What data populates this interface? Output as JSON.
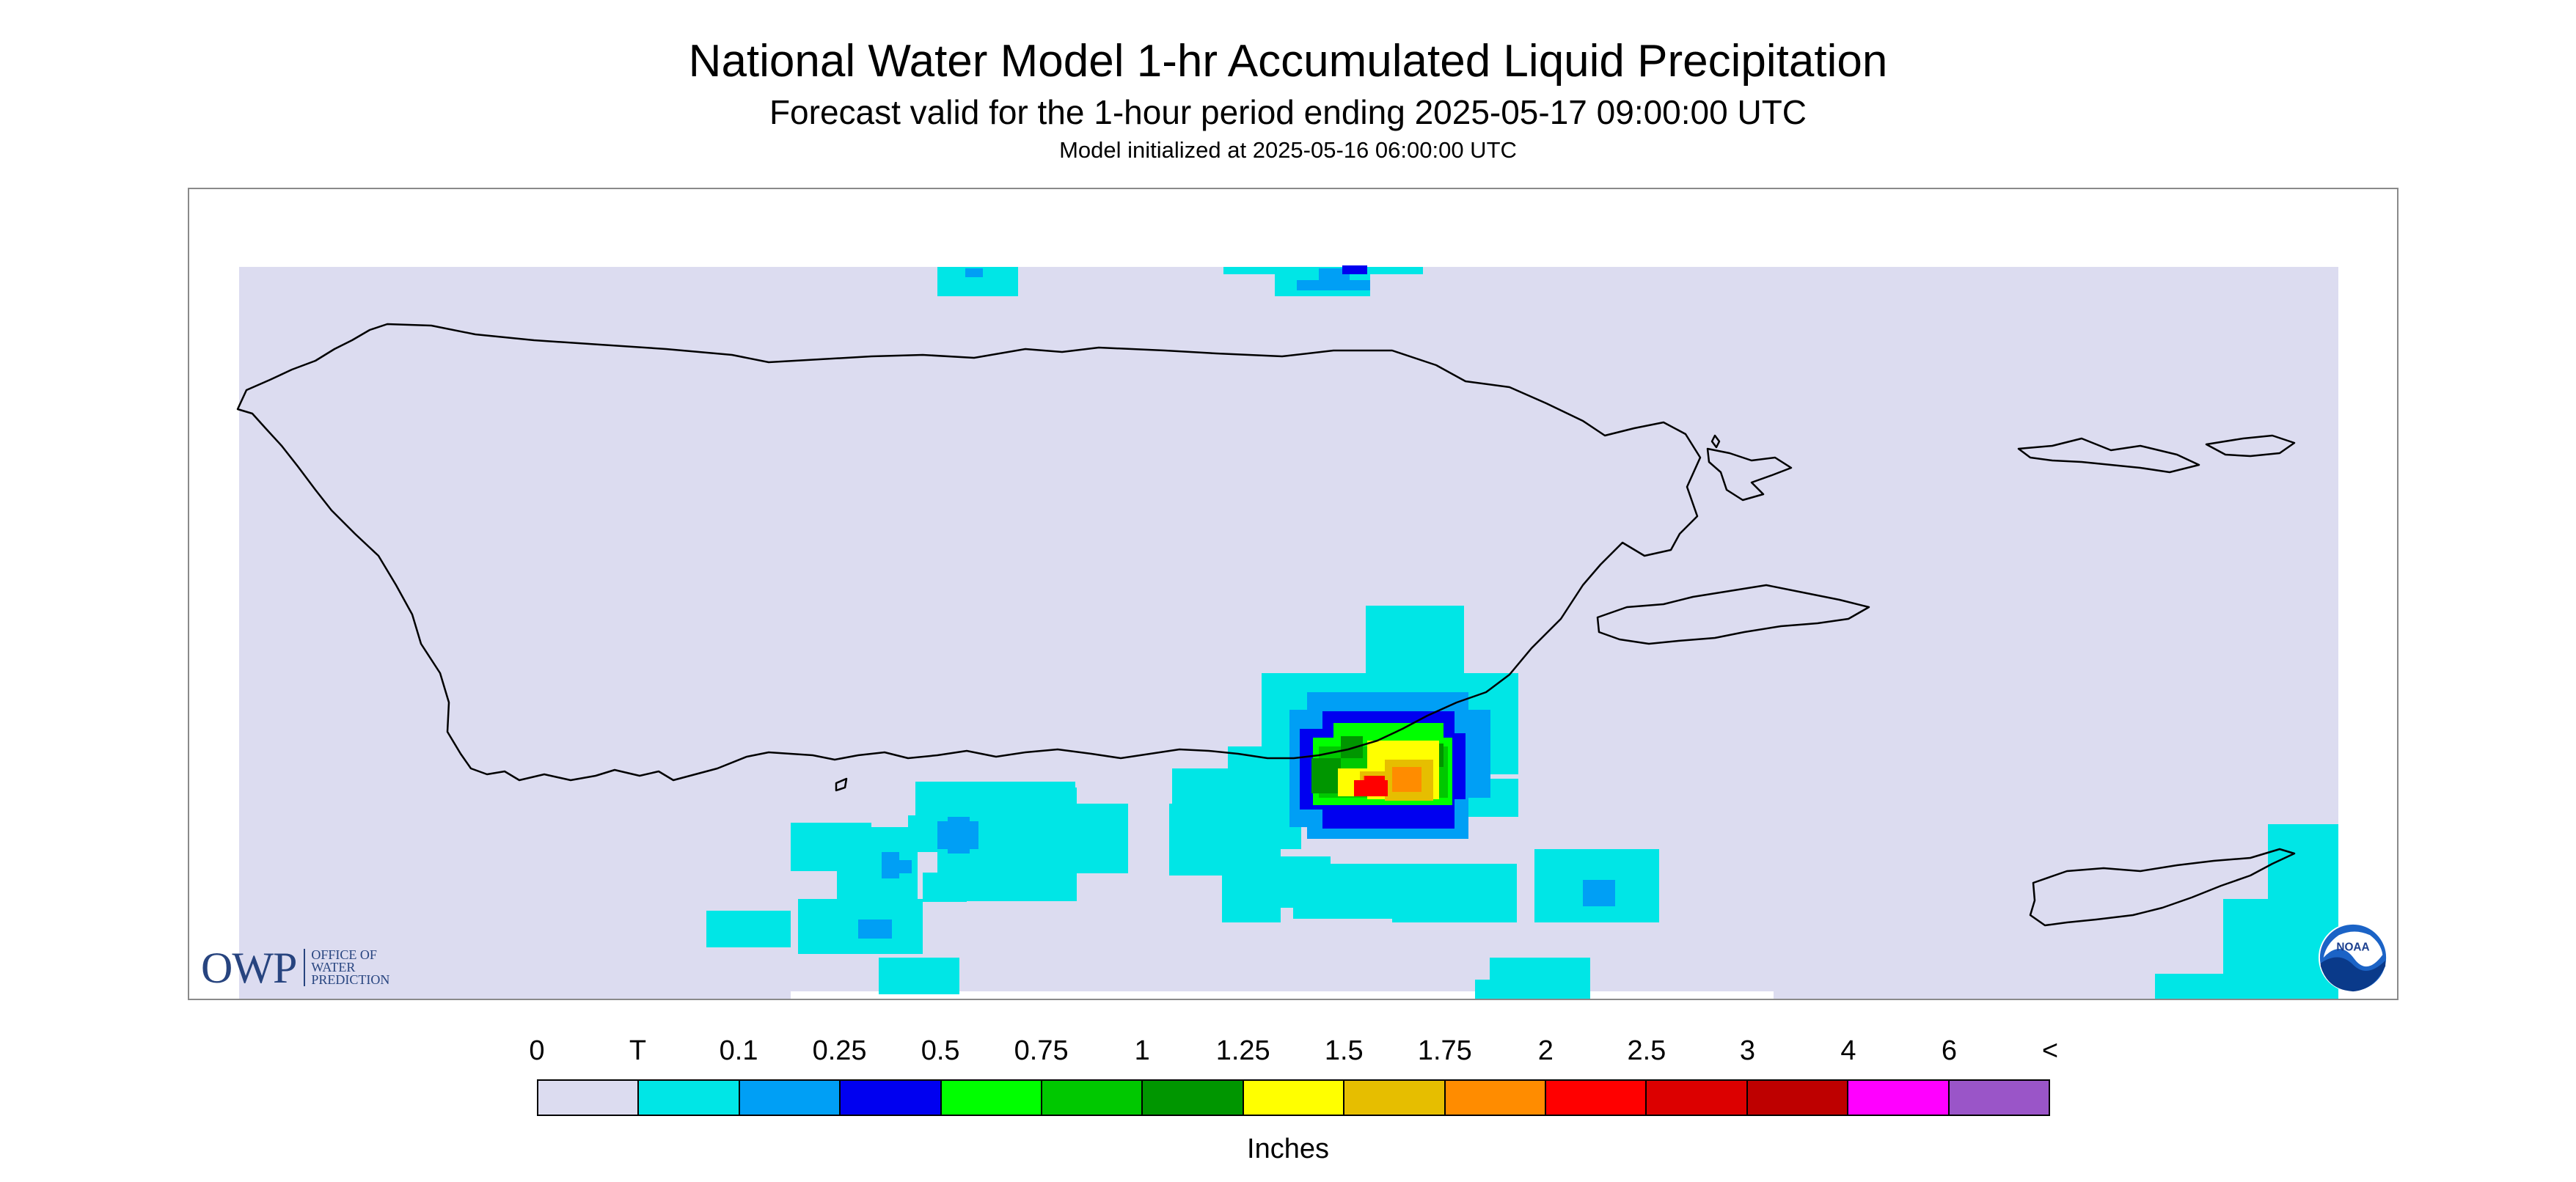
{
  "header": {
    "title": "National Water Model 1-hr Accumulated Liquid Precipitation",
    "subtitle": "Forecast valid for the 1-hour period ending 2025-05-17 09:00:00 UTC",
    "init_line": "Model initialized at 2025-05-16 06:00:00 UTC"
  },
  "map": {
    "background_color": "#dcdcf0",
    "coastline_color": "#000000",
    "region": "Puerto Rico and U.S. Virgin Islands",
    "precip_max_category": "2"
  },
  "logos": {
    "owp_mark": "OWP",
    "owp_line1": "OFFICE OF",
    "owp_line2": "WATER",
    "owp_line3": "PREDICTION",
    "noaa_text": "NOAA"
  },
  "legend": {
    "units": "Inches",
    "labels": [
      "0",
      "T",
      "0.1",
      "0.25",
      "0.5",
      "0.75",
      "1",
      "1.25",
      "1.5",
      "1.75",
      "2",
      "2.5",
      "3",
      "4",
      "6",
      "<"
    ],
    "colors": [
      "#dcdcf0",
      "#00e6e6",
      "#009ff5",
      "#0000f0",
      "#00ff00",
      "#00c800",
      "#009600",
      "#ffff00",
      "#e6be00",
      "#ff8c00",
      "#ff0000",
      "#dc0000",
      "#be0000",
      "#ff00ff",
      "#9a55c8"
    ]
  }
}
